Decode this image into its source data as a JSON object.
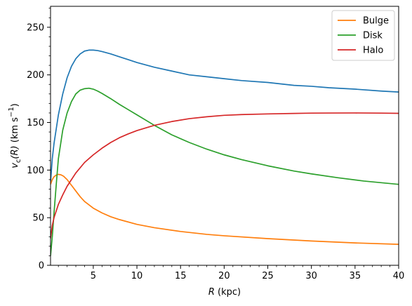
{
  "chart_data": {
    "type": "line",
    "title": "",
    "xlabel": "R (kpc)",
    "ylabel": "v_c(R) (km s^-1)",
    "xlabel_parts": {
      "var": "R",
      "unit": " (kpc)"
    },
    "ylabel_parts": {
      "var": "v",
      "sub": "c",
      "arg": "(R)",
      "unit": " (km s",
      "exp": "−1",
      "close": ")"
    },
    "xlim": [
      0.1,
      40
    ],
    "ylim": [
      0,
      272
    ],
    "grid": false,
    "legend_position": "top-right",
    "x_ticks": [
      5,
      10,
      15,
      20,
      25,
      30,
      35,
      40
    ],
    "y_ticks": [
      0,
      50,
      100,
      150,
      200,
      250
    ],
    "series": [
      {
        "name": "",
        "color": "#1f77b4",
        "x": [
          0.1,
          0.3,
          0.5,
          1,
          1.5,
          2,
          2.5,
          3,
          3.5,
          4,
          4.5,
          5,
          5.5,
          6,
          7,
          8,
          9,
          10,
          12,
          14,
          16,
          18,
          20,
          22,
          25,
          28,
          30,
          32,
          35,
          38,
          40
        ],
        "y": [
          87,
          112,
          128,
          158,
          180,
          197,
          209,
          217,
          222,
          225,
          226,
          226,
          225.5,
          224.5,
          222,
          219,
          216,
          213,
          208,
          204,
          200,
          198,
          196,
          194,
          192,
          189,
          188,
          186.5,
          185,
          183,
          182
        ]
      },
      {
        "name": "Bulge",
        "color": "#ff7f0e",
        "x": [
          0.1,
          0.3,
          0.5,
          0.8,
          1,
          1.3,
          1.6,
          2,
          2.5,
          3,
          3.5,
          4,
          5,
          6,
          7,
          8,
          10,
          12,
          15,
          18,
          20,
          25,
          30,
          35,
          40
        ],
        "y": [
          85,
          90,
          93,
          95,
          95.5,
          95,
          93.5,
          90,
          84,
          78,
          72,
          67,
          60,
          55,
          51,
          48,
          43,
          39.5,
          35.5,
          32.5,
          31,
          28,
          25.5,
          23.5,
          22
        ]
      },
      {
        "name": "Disk",
        "color": "#2ca02c",
        "x": [
          0.1,
          0.3,
          0.5,
          0.8,
          1,
          1.5,
          2,
          2.5,
          3,
          3.5,
          4,
          4.5,
          5,
          5.5,
          6,
          7,
          8,
          9,
          10,
          12,
          14,
          16,
          18,
          20,
          22,
          25,
          28,
          30,
          33,
          36,
          40
        ],
        "y": [
          10,
          30,
          55,
          90,
          112,
          142,
          160,
          172,
          180,
          184,
          185.5,
          186,
          185,
          183,
          180.5,
          175,
          169,
          163.5,
          158,
          147,
          137,
          129,
          122,
          116,
          111,
          104.5,
          99,
          96,
          92,
          88.5,
          85
        ]
      },
      {
        "name": "Halo",
        "color": "#d62728",
        "x": [
          0.1,
          0.3,
          0.5,
          1,
          1.5,
          2,
          3,
          4,
          5,
          6,
          7,
          8,
          9,
          10,
          12,
          14,
          16,
          18,
          20,
          22,
          25,
          28,
          30,
          32,
          35,
          38,
          40
        ],
        "y": [
          28,
          42,
          50,
          64,
          74,
          83,
          97,
          108,
          116,
          123,
          129,
          134,
          138,
          141.5,
          147,
          151,
          154,
          156,
          157.5,
          158.3,
          159,
          159.5,
          159.8,
          159.9,
          160,
          159.8,
          159.6
        ]
      }
    ]
  }
}
